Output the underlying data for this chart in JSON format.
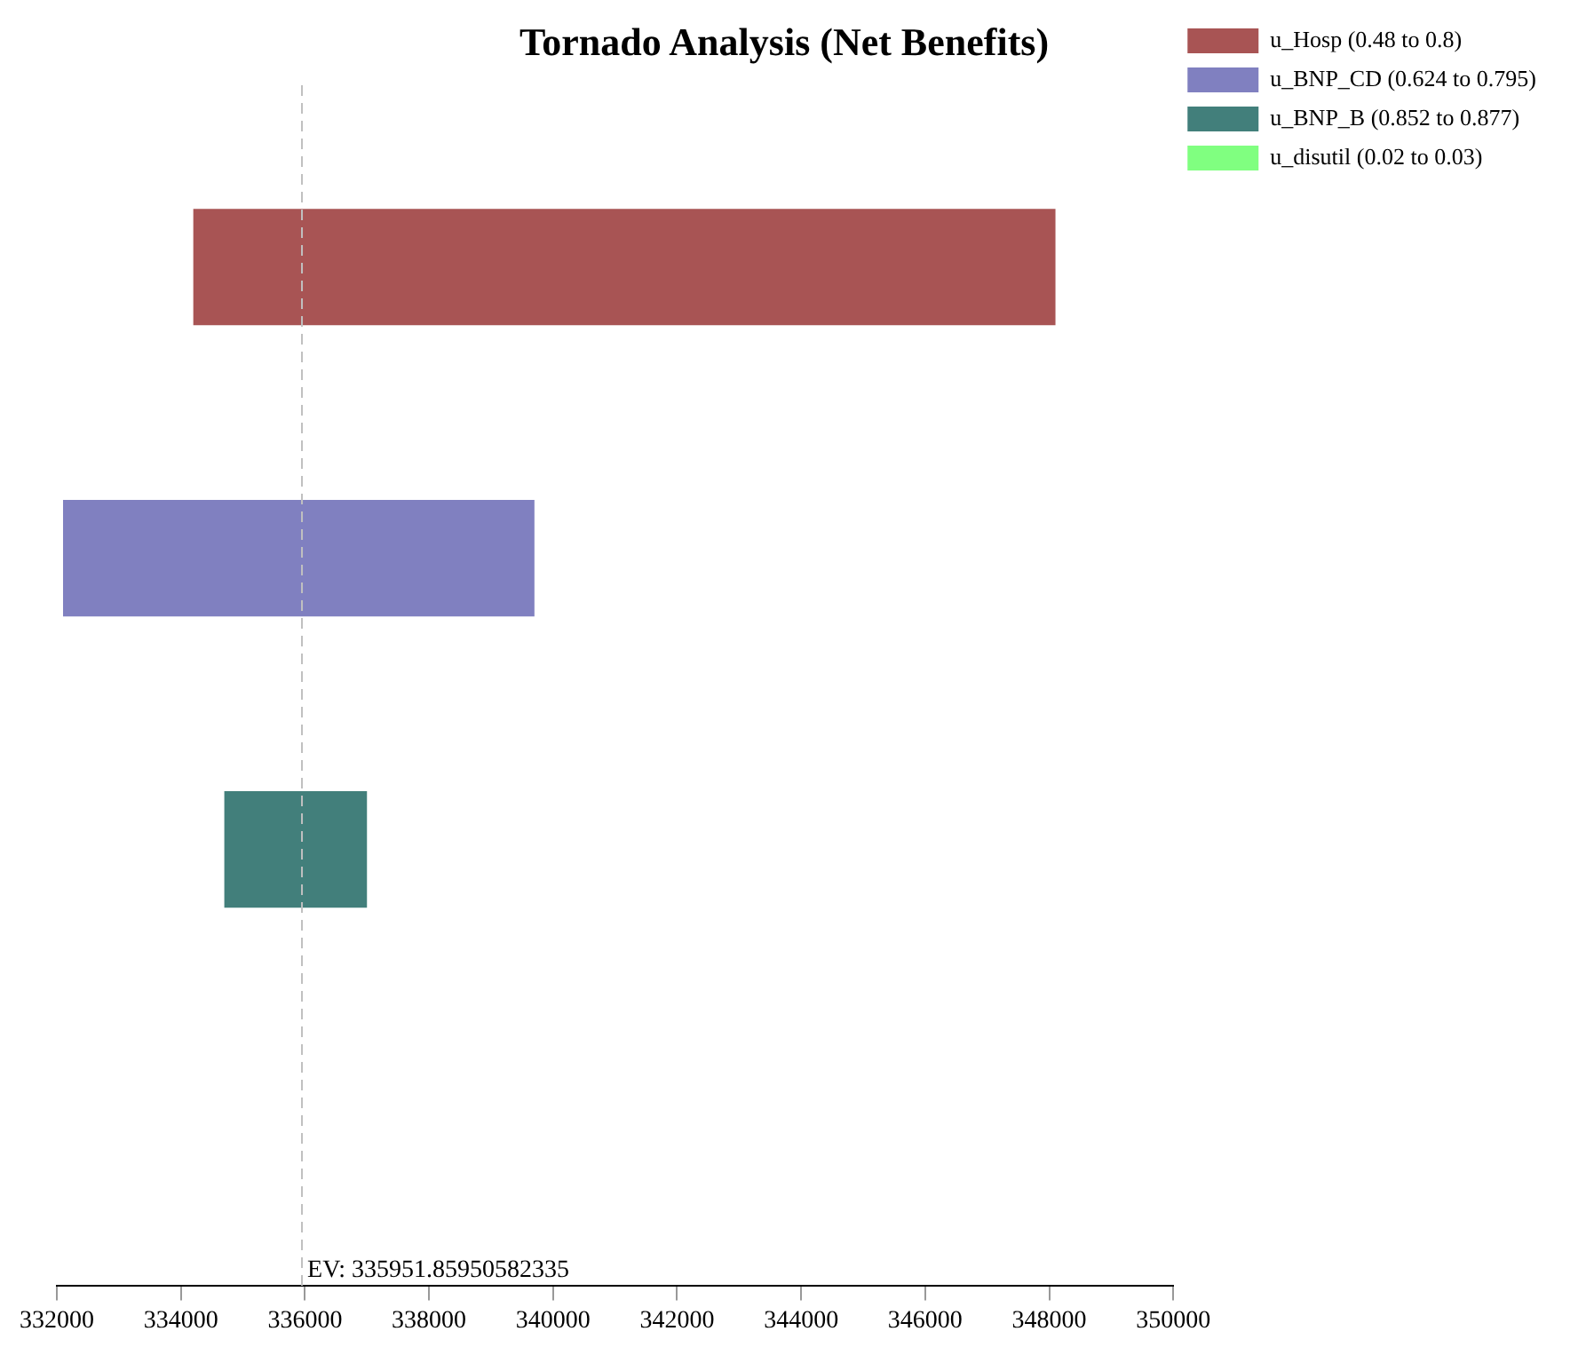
{
  "chart_data": {
    "type": "bar",
    "title": "Tornado Analysis (Net Benefits)",
    "orientation": "horizontal",
    "categories": [
      null,
      null,
      null,
      null
    ],
    "series": [
      {
        "name": "u_Hosp (0.48 to 0.8)",
        "color": "#a85454",
        "values": [
          13900,
          null,
          null,
          null
        ],
        "base": [
          334200,
          null,
          null,
          null
        ]
      },
      {
        "name": "u_BNP_CD (0.624 to 0.795)",
        "color": "#8080c0",
        "values": [
          null,
          7600,
          null,
          null
        ],
        "base": [
          null,
          332100,
          null,
          null
        ]
      },
      {
        "name": "u_BNP_B (0.852 to 0.877)",
        "color": "#427f7b",
        "values": [
          null,
          null,
          2300,
          null
        ],
        "base": [
          null,
          null,
          334700,
          null
        ]
      },
      {
        "name": "u_disutil (0.02 to 0.03)",
        "color": "#80ff80",
        "values": [
          null,
          null,
          null,
          null
        ]
      }
    ],
    "xlim": [
      332000,
      350000
    ],
    "xticks": [
      332000,
      334000,
      336000,
      338000,
      340000,
      342000,
      344000,
      346000,
      348000,
      350000
    ],
    "ref_lines": [
      {
        "axis": "x",
        "value": 335951.85950582335,
        "label": "EV: 335951.85950582335",
        "color": "#c0c0c0",
        "line_style": "dashed"
      }
    ],
    "grid": false,
    "legend": "top right",
    "tick_labels": "x"
  }
}
